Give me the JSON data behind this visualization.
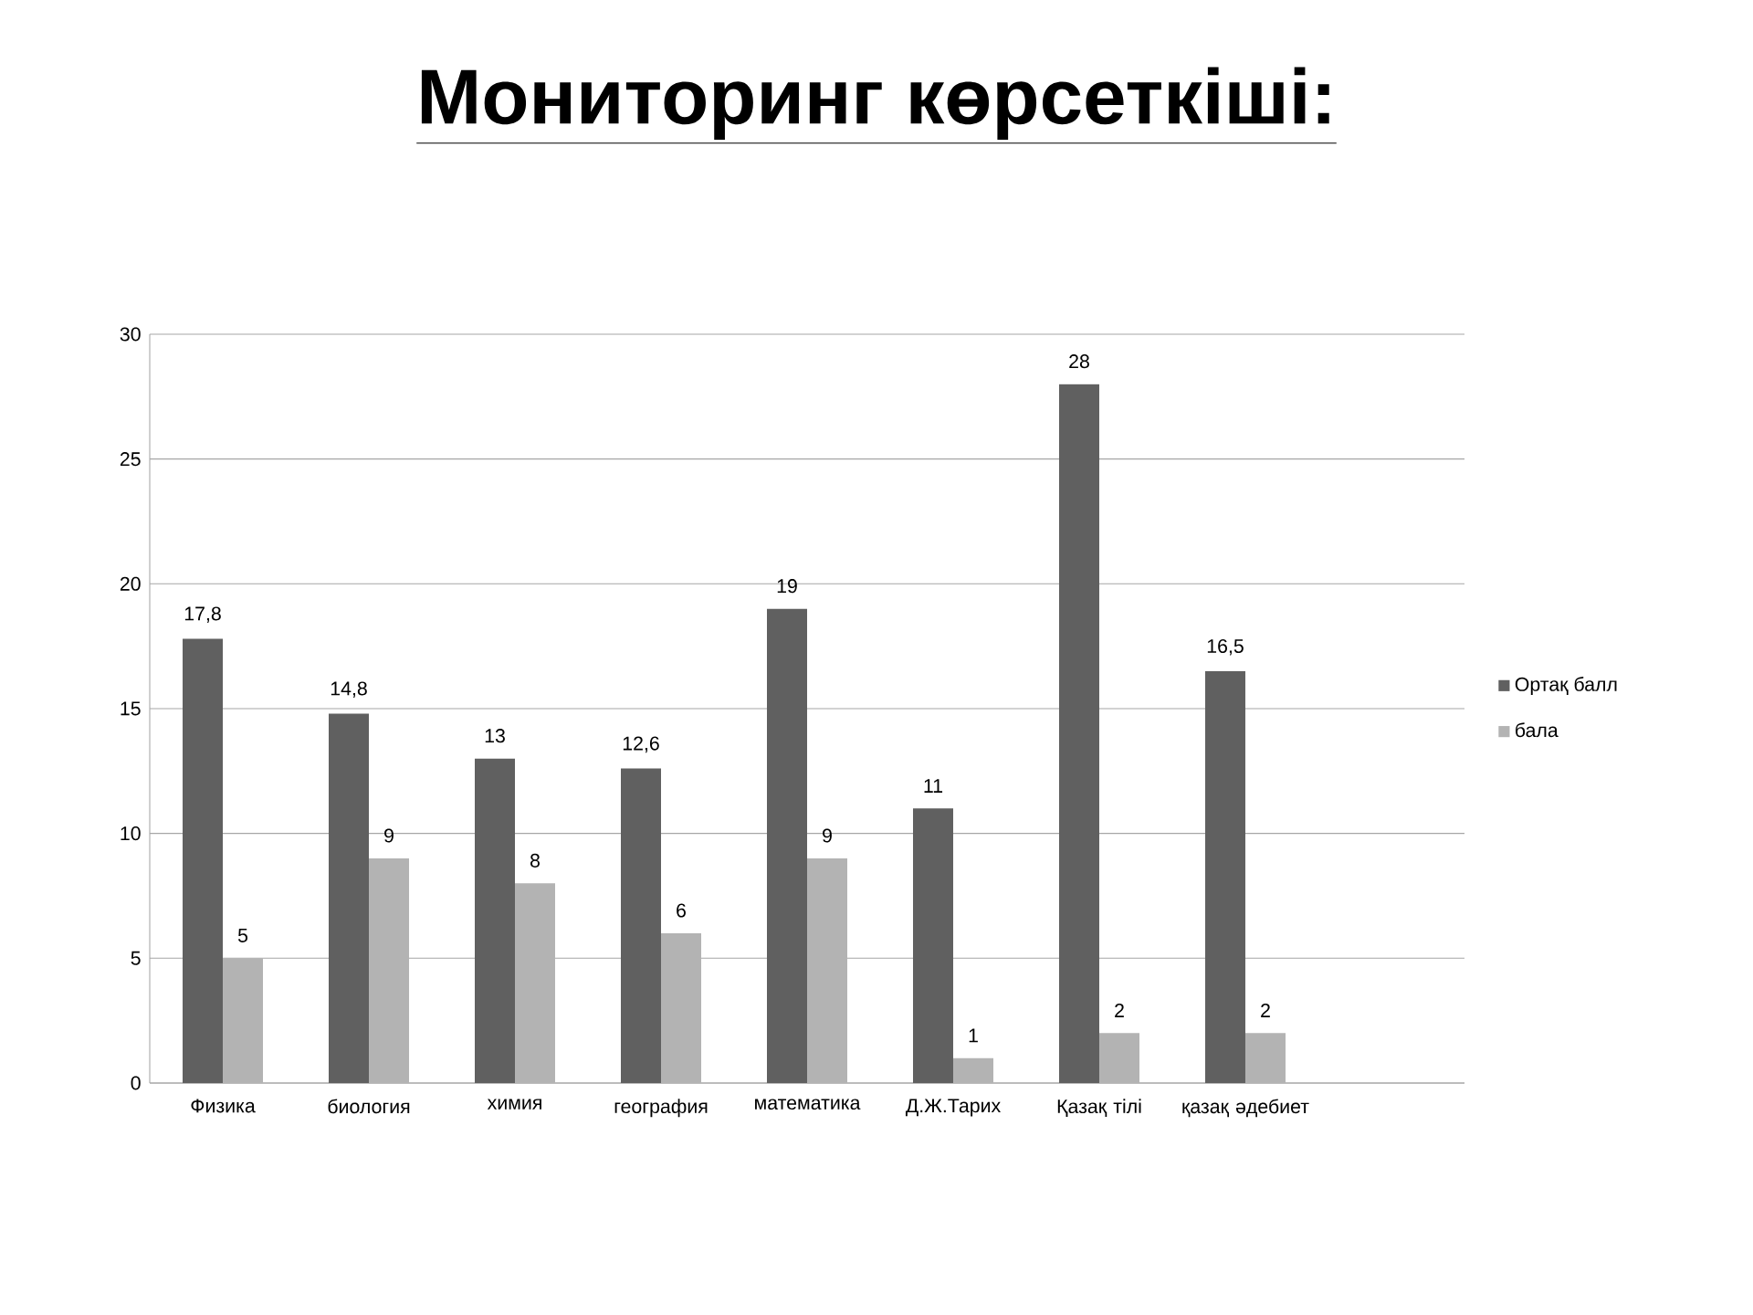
{
  "chart_data": {
    "type": "bar",
    "title": "Мониторинг көрсеткіші:",
    "categories": [
      "Физика",
      "биология",
      "химия",
      "география",
      "математика",
      "Д.Ж.Тарих",
      "Қазақ тілі",
      "қазақ әдебиет",
      null
    ],
    "series": [
      {
        "name": "Ортақ балл",
        "color": "#606060",
        "values": [
          17.8,
          14.8,
          13,
          12.6,
          19,
          11,
          28,
          16.5,
          null
        ],
        "value_labels": [
          "17,8",
          "14,8",
          "13",
          "12,6",
          "19",
          "11",
          "28",
          "16,5",
          null
        ]
      },
      {
        "name": "бала",
        "color": "#b3b3b3",
        "values": [
          5,
          9,
          8,
          6,
          9,
          1,
          2,
          2,
          null
        ],
        "value_labels": [
          "5",
          "9",
          "8",
          "6",
          "9",
          "1",
          "2",
          "2",
          null
        ]
      }
    ],
    "ylim": [
      0,
      30
    ],
    "yticks": [
      0,
      5,
      10,
      15,
      20,
      25,
      30
    ],
    "grid": "y",
    "legend": "right"
  }
}
